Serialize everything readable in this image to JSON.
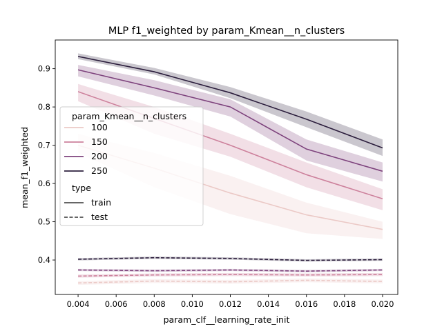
{
  "chart_data": {
    "type": "line",
    "title": "MLP f1_weighted by param_Kmean__n_clusters",
    "xlabel": "param_clf__learning_rate_init",
    "ylabel": "mean_f1_weighted",
    "xlim": [
      0.0028,
      0.0208
    ],
    "ylim": [
      0.31,
      0.975
    ],
    "xticks": [
      0.004,
      0.006,
      0.008,
      0.01,
      0.012,
      0.014,
      0.016,
      0.018,
      0.02
    ],
    "xtick_labels": [
      "0.004",
      "0.006",
      "0.008",
      "0.010",
      "0.012",
      "0.014",
      "0.016",
      "0.018",
      "0.020"
    ],
    "yticks": [
      0.4,
      0.5,
      0.6,
      0.7,
      0.8,
      0.9
    ],
    "ytick_labels": [
      "0.4",
      "0.5",
      "0.6",
      "0.7",
      "0.8",
      "0.9"
    ],
    "grid": false,
    "legend_placement": "center-left",
    "legend": {
      "hue_title": "param_Kmean__n_clusters",
      "hue_entries": [
        {
          "label": "100",
          "color": "#ebc9c6"
        },
        {
          "label": "150",
          "color": "#cd819c"
        },
        {
          "label": "200",
          "color": "#7e437d"
        },
        {
          "label": "250",
          "color": "#2c1e3d"
        }
      ],
      "style_title": "type",
      "style_entries": [
        {
          "label": "train",
          "dash": "solid"
        },
        {
          "label": "test",
          "dash": "dashed"
        }
      ]
    },
    "x": [
      0.004,
      0.008,
      0.012,
      0.016,
      0.02
    ],
    "series": [
      {
        "name": "100",
        "type": "train",
        "color": "#ebc9c6",
        "values": [
          0.7,
          0.64,
          0.575,
          0.518,
          0.48
        ],
        "ci_low": [
          0.68,
          0.59,
          0.52,
          0.47,
          0.455
        ],
        "ci_high": [
          0.73,
          0.68,
          0.62,
          0.55,
          0.5
        ]
      },
      {
        "name": "150",
        "type": "train",
        "color": "#cd819c",
        "values": [
          0.84,
          0.77,
          0.7,
          0.623,
          0.56
        ],
        "ci_low": [
          0.815,
          0.73,
          0.67,
          0.59,
          0.53
        ],
        "ci_high": [
          0.86,
          0.8,
          0.73,
          0.655,
          0.585
        ]
      },
      {
        "name": "200",
        "type": "train",
        "color": "#7e437d",
        "values": [
          0.897,
          0.85,
          0.8,
          0.69,
          0.632
        ],
        "ci_low": [
          0.88,
          0.83,
          0.775,
          0.66,
          0.605
        ],
        "ci_high": [
          0.91,
          0.87,
          0.82,
          0.715,
          0.655
        ]
      },
      {
        "name": "250",
        "type": "train",
        "color": "#2c1e3d",
        "values": [
          0.932,
          0.892,
          0.837,
          0.768,
          0.693
        ],
        "ci_low": [
          0.925,
          0.885,
          0.823,
          0.747,
          0.672
        ],
        "ci_high": [
          0.94,
          0.902,
          0.852,
          0.788,
          0.715
        ]
      },
      {
        "name": "100",
        "type": "test",
        "color": "#ebc9c6",
        "values": [
          0.34,
          0.345,
          0.343,
          0.347,
          0.344
        ],
        "ci_low": [
          0.335,
          0.34,
          0.338,
          0.342,
          0.339
        ],
        "ci_high": [
          0.345,
          0.35,
          0.348,
          0.352,
          0.349
        ]
      },
      {
        "name": "150",
        "type": "test",
        "color": "#cd819c",
        "values": [
          0.358,
          0.361,
          0.362,
          0.361,
          0.362
        ],
        "ci_low": [
          0.354,
          0.357,
          0.358,
          0.357,
          0.358
        ],
        "ci_high": [
          0.362,
          0.365,
          0.366,
          0.365,
          0.366
        ]
      },
      {
        "name": "200",
        "type": "test",
        "color": "#7e437d",
        "values": [
          0.374,
          0.372,
          0.374,
          0.371,
          0.374
        ],
        "ci_low": [
          0.371,
          0.369,
          0.371,
          0.368,
          0.371
        ],
        "ci_high": [
          0.377,
          0.375,
          0.377,
          0.374,
          0.377
        ]
      },
      {
        "name": "250",
        "type": "test",
        "color": "#2c1e3d",
        "values": [
          0.402,
          0.406,
          0.404,
          0.399,
          0.401
        ],
        "ci_low": [
          0.399,
          0.403,
          0.401,
          0.396,
          0.398
        ],
        "ci_high": [
          0.405,
          0.409,
          0.407,
          0.402,
          0.404
        ]
      }
    ]
  }
}
